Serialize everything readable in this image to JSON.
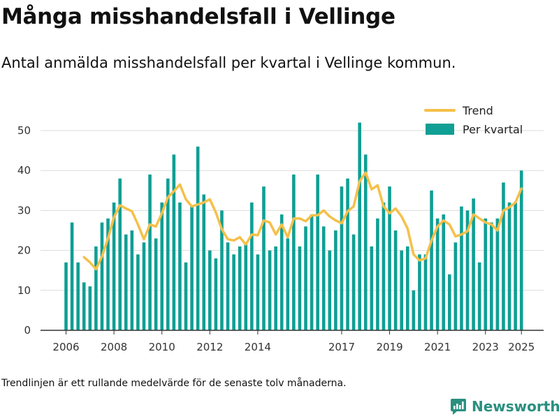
{
  "title": "Många misshandelsfall i Vellinge",
  "subtitle": "Antal anmälda misshandelsfall per kvartal i Vellinge kommun.",
  "footnote": "Trendlinjen är ett rullande medelvärde för de senaste tolv månaderna.",
  "brand": {
    "name": "Newsworthy",
    "icon": "newsworthy-logo-icon"
  },
  "colors": {
    "bar": "#0f9f94",
    "trend": "#f5c04a",
    "grid": "#dcdcdc",
    "axis": "#333333",
    "brand": "#2a8f80"
  },
  "chart_data": {
    "type": "bar",
    "x_tick_labels": [
      "2006",
      "2008",
      "2010",
      "2012",
      "2014",
      "2017",
      "2019",
      "2021",
      "2023",
      "2025"
    ],
    "y_ticks": [
      0,
      10,
      20,
      30,
      40,
      50
    ],
    "ylim": [
      0,
      55
    ],
    "grid": true,
    "legend": {
      "position": "top-right",
      "entries": [
        "Trend",
        "Per kvartal"
      ]
    },
    "series": [
      {
        "name": "Per kvartal",
        "kind": "bar",
        "values": [
          17,
          27,
          17,
          12,
          11,
          21,
          27,
          28,
          32,
          38,
          24,
          25,
          19,
          22,
          39,
          23,
          32,
          38,
          44,
          32,
          17,
          31,
          46,
          34,
          20,
          18,
          30,
          22,
          19,
          21,
          22,
          32,
          19,
          36,
          20,
          21,
          29,
          23,
          39,
          21,
          26,
          29,
          39,
          26,
          20,
          25,
          36,
          38,
          24,
          52,
          44,
          21,
          28,
          32,
          36,
          25,
          20,
          21,
          10,
          19,
          19,
          35,
          28,
          29,
          14,
          22,
          31,
          30,
          33,
          17,
          28,
          27,
          28,
          37,
          32,
          32,
          40
        ]
      },
      {
        "name": "Trend",
        "kind": "line",
        "values": [
          null,
          null,
          null,
          18.3,
          17,
          15.3,
          18.5,
          23,
          28.3,
          31.3,
          30.5,
          29.8,
          26.5,
          22.8,
          26.5,
          26,
          29.3,
          33.3,
          34.8,
          36.5,
          32.8,
          31,
          31.5,
          32,
          32.8,
          29.5,
          25.3,
          22.8,
          22.5,
          23.3,
          21.5,
          24,
          23.8,
          27.5,
          27,
          24,
          26.5,
          23.3,
          28,
          28,
          27.3,
          28.8,
          28.8,
          30,
          28.5,
          27.5,
          26.8,
          29.8,
          31,
          37.3,
          39.5,
          35.3,
          36.3,
          31,
          29.3,
          30.5,
          28.5,
          25.5,
          19,
          17.5,
          18,
          22.5,
          26,
          27.5,
          26.5,
          23.5,
          24,
          24.8,
          29,
          28,
          27,
          26.5,
          25,
          30,
          30.8,
          32,
          35.5
        ]
      }
    ]
  }
}
